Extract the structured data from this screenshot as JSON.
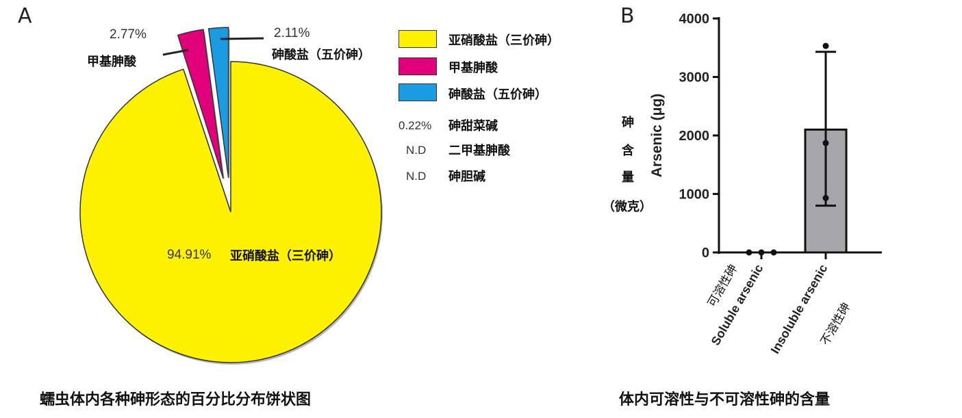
{
  "chart_data": [
    {
      "type": "pie",
      "panel_label": "A",
      "caption": "蠕虫体内各种砷形态的百分比分布饼状图",
      "slices": [
        {
          "name": "亚硝酸盐（三价砷）",
          "value": 94.91,
          "label": "94.91%",
          "color": "#FFF200",
          "exploded": false
        },
        {
          "name": "甲基胂酸",
          "value": 2.77,
          "label": "2.77%",
          "color": "#E2007A",
          "exploded": true
        },
        {
          "name": "砷酸盐（五价砷）",
          "value": 2.11,
          "label": "2.11%",
          "color": "#1B9CE2",
          "exploded": true
        }
      ],
      "legend": [
        {
          "name": "亚硝酸盐（三价砷）",
          "color": "#FFF200"
        },
        {
          "name": "甲基胂酸",
          "color": "#E2007A"
        },
        {
          "name": "砷酸盐（五价砷）",
          "color": "#1B9CE2"
        }
      ],
      "other_species": [
        {
          "value": "0.22%",
          "name": "砷甜菜碱"
        },
        {
          "value": "N.D",
          "name": "二甲基胂酸"
        },
        {
          "value": "N.D",
          "name": "砷胆碱"
        }
      ],
      "legend_position": "right"
    },
    {
      "type": "bar",
      "panel_label": "B",
      "caption": "体内可溶性与不可溶性砷的含量",
      "ylabel": "Arsenic (μg)",
      "ylabel_cn": [
        "砷",
        "含",
        "量",
        "（微克）"
      ],
      "ylim": [
        0,
        4000
      ],
      "yticks": [
        0,
        1000,
        2000,
        3000,
        4000
      ],
      "categories": [
        {
          "en": "Soluble arsenic",
          "cn": "可溶性砷"
        },
        {
          "en": "Insoluble arsenic",
          "cn": "不溶性砷"
        }
      ],
      "values": [
        0,
        2100
      ],
      "error": [
        [
          0,
          0
        ],
        [
          800,
          3430
        ]
      ],
      "points": [
        [
          0,
          0,
          0
        ],
        [
          3530,
          1870,
          930
        ]
      ],
      "bar_color": "#A7A6AB"
    }
  ]
}
